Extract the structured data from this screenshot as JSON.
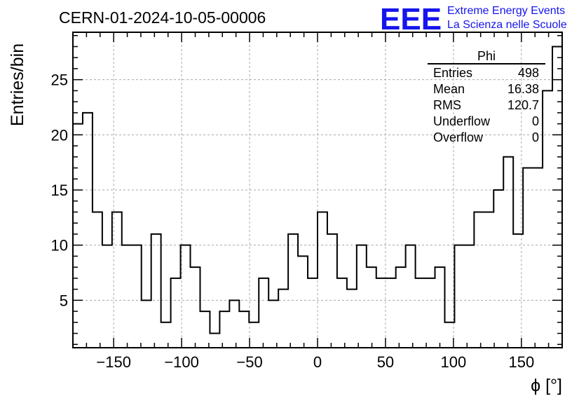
{
  "chart_data": {
    "type": "bar",
    "title": "CERN-01-2024-10-05-00006",
    "xlabel": "ϕ [°]",
    "ylabel": "Entries/bin",
    "xlim": [
      -180,
      180
    ],
    "ylim": [
      0.7,
      29.3
    ],
    "bin_width": 7.2,
    "bin_edges_start": -180,
    "grid": true,
    "x_ticks": [
      -150,
      -100,
      -50,
      0,
      50,
      100,
      150
    ],
    "x_tick_labels": [
      "−150",
      "−100",
      "−50",
      "0",
      "50",
      "100",
      "150"
    ],
    "y_ticks": [
      5,
      10,
      15,
      20,
      25
    ],
    "y_tick_labels": [
      "5",
      "10",
      "15",
      "20",
      "25"
    ],
    "values": [
      21,
      22,
      13,
      10,
      13,
      10,
      10,
      5,
      11,
      3,
      7,
      10,
      8,
      4,
      2,
      4,
      5,
      4,
      3,
      7,
      5,
      6,
      11,
      9,
      7,
      13,
      11,
      7,
      6,
      10,
      8,
      7,
      7,
      8,
      10,
      7,
      7,
      8,
      3,
      10,
      10,
      13,
      13,
      15,
      18,
      11,
      17,
      17,
      24,
      28
    ],
    "stats_box": {
      "name": "Phi",
      "rows": [
        {
          "label": "Entries",
          "value": "498"
        },
        {
          "label": "Mean",
          "value": "16.38"
        },
        {
          "label": "RMS",
          "value": "120.7"
        },
        {
          "label": "Underflow",
          "value": "0"
        },
        {
          "label": "Overflow",
          "value": "0"
        }
      ]
    }
  },
  "logo": {
    "big_text": "EEE",
    "line1": "Extreme Energy Events",
    "line2": "La Scienza nelle Scuole",
    "color": "#1515ee"
  },
  "colors": {
    "histogram": "#000000",
    "grid": "#a8a8a8"
  }
}
